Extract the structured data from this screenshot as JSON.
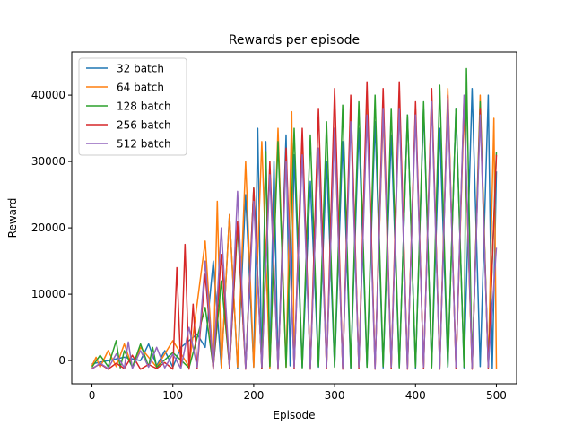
{
  "chart_data": {
    "type": "line",
    "title": "Rewards per episode",
    "xlabel": "Episode",
    "ylabel": "Reward",
    "xlim": [
      -25,
      525
    ],
    "ylim": [
      -3500,
      46500
    ],
    "xticks": [
      0,
      100,
      200,
      300,
      400,
      500
    ],
    "yticks": [
      0,
      10000,
      20000,
      30000,
      40000
    ],
    "grid": false,
    "legend_position": "top-left",
    "series": [
      {
        "name": "32 batch",
        "color": "#1f77b4",
        "x": [
          0,
          20,
          40,
          60,
          70,
          80,
          90,
          100,
          110,
          120,
          130,
          140,
          150,
          160,
          170,
          180,
          190,
          200,
          205,
          210,
          215,
          220,
          225,
          230,
          240,
          245,
          250,
          260,
          270,
          280,
          290,
          300,
          310,
          320,
          330,
          340,
          350,
          360,
          370,
          380,
          390,
          400,
          410,
          420,
          430,
          440,
          450,
          460,
          470,
          480,
          490,
          495,
          500
        ],
        "values": [
          -500,
          0,
          500,
          0,
          2500,
          -800,
          1500,
          -1000,
          2000,
          3000,
          4000,
          2000,
          15000,
          -1000,
          22000,
          -1200,
          25000,
          -1000,
          35000,
          -1200,
          33000,
          -800,
          30000,
          -1000,
          34000,
          -800,
          31000,
          -1000,
          27000,
          -1000,
          30000,
          -900,
          33000,
          -1200,
          35000,
          -1000,
          36000,
          -1100,
          34000,
          -1000,
          37000,
          -1200,
          38000,
          -900,
          35000,
          -1000,
          38000,
          -1100,
          41000,
          -900,
          40000,
          -1200,
          28500
        ]
      },
      {
        "name": "64 batch",
        "color": "#ff7f0e",
        "x": [
          0,
          5,
          10,
          20,
          30,
          40,
          50,
          60,
          80,
          100,
          120,
          140,
          150,
          155,
          160,
          170,
          180,
          190,
          200,
          210,
          220,
          230,
          240,
          247,
          250,
          260,
          270,
          280,
          290,
          300,
          310,
          320,
          330,
          340,
          350,
          360,
          370,
          380,
          390,
          400,
          410,
          420,
          430,
          440,
          450,
          460,
          470,
          480,
          490,
          497,
          500
        ],
        "values": [
          -800,
          500,
          -1000,
          1500,
          -900,
          2500,
          -1000,
          2000,
          -1000,
          3000,
          -900,
          18000,
          -1000,
          24000,
          -1100,
          22000,
          -1000,
          30000,
          -1000,
          33000,
          -1200,
          35000,
          -1000,
          37500,
          -800,
          33000,
          -1000,
          32000,
          -900,
          35000,
          -1100,
          38000,
          -1000,
          40000,
          -900,
          37000,
          -1200,
          39000,
          -1000,
          38000,
          -1100,
          40000,
          -900,
          41000,
          -1000,
          38000,
          -1200,
          40000,
          -1000,
          36500,
          -1200
        ]
      },
      {
        "name": "128 batch",
        "color": "#2ca02c",
        "x": [
          0,
          10,
          20,
          30,
          35,
          40,
          50,
          60,
          70,
          75,
          80,
          100,
          120,
          140,
          150,
          160,
          170,
          180,
          190,
          200,
          210,
          215,
          220,
          230,
          240,
          250,
          260,
          270,
          280,
          290,
          300,
          310,
          320,
          330,
          340,
          350,
          360,
          370,
          380,
          390,
          400,
          410,
          420,
          430,
          440,
          450,
          460,
          463,
          470,
          480,
          490,
          500
        ],
        "values": [
          -1000,
          800,
          -900,
          3000,
          -1100,
          1500,
          -1000,
          2500,
          -900,
          2000,
          -1000,
          1200,
          -1100,
          8000,
          -1000,
          12000,
          -900,
          20000,
          -1000,
          26000,
          -1100,
          31500,
          -900,
          33000,
          -1000,
          35000,
          -1100,
          34000,
          -900,
          36000,
          -1000,
          38500,
          -1100,
          39000,
          -1000,
          40000,
          -900,
          38000,
          -1100,
          37000,
          -1000,
          39000,
          -1100,
          41500,
          -900,
          38000,
          -1000,
          44000,
          -1100,
          39000,
          -1000,
          31500
        ]
      },
      {
        "name": "256 batch",
        "color": "#d62728",
        "x": [
          0,
          10,
          20,
          30,
          40,
          50,
          60,
          70,
          80,
          90,
          100,
          105,
          110,
          115,
          120,
          125,
          130,
          140,
          150,
          160,
          170,
          180,
          190,
          200,
          210,
          220,
          230,
          240,
          250,
          260,
          270,
          280,
          290,
          300,
          310,
          320,
          330,
          340,
          350,
          360,
          370,
          380,
          390,
          400,
          410,
          420,
          430,
          440,
          450,
          460,
          470,
          480,
          490,
          500
        ],
        "values": [
          -1200,
          -500,
          -1300,
          -400,
          -1200,
          800,
          -1300,
          -600,
          -1200,
          -300,
          -1300,
          14000,
          -1200,
          17500,
          -1300,
          8500,
          -1200,
          13000,
          -1300,
          16000,
          -1200,
          21000,
          -1300,
          26000,
          -1200,
          30000,
          -1300,
          32000,
          -1200,
          35000,
          -1300,
          38000,
          -1200,
          41000,
          -1300,
          40000,
          -1200,
          42000,
          -1300,
          41000,
          -1200,
          42000,
          -1300,
          39000,
          -1200,
          41000,
          -1300,
          40000,
          -1200,
          39500,
          -1300,
          38000,
          -1200,
          31000
        ]
      },
      {
        "name": "512 batch",
        "color": "#9467bd",
        "x": [
          0,
          10,
          20,
          30,
          40,
          45,
          50,
          60,
          70,
          80,
          90,
          100,
          110,
          120,
          130,
          140,
          150,
          160,
          170,
          180,
          190,
          200,
          210,
          220,
          230,
          240,
          250,
          260,
          270,
          280,
          290,
          300,
          310,
          320,
          330,
          340,
          350,
          360,
          370,
          380,
          390,
          400,
          410,
          420,
          430,
          440,
          450,
          460,
          470,
          480,
          490,
          500
        ],
        "values": [
          -1300,
          -400,
          -1200,
          1000,
          -1100,
          2800,
          -1200,
          1500,
          -1000,
          2000,
          -1100,
          1000,
          -1200,
          5000,
          -1000,
          15000,
          -1100,
          20000,
          -1000,
          25500,
          -1200,
          24000,
          -1000,
          28000,
          -1100,
          30000,
          -1000,
          31000,
          -1200,
          32000,
          -1000,
          35000,
          -1100,
          36000,
          -1000,
          37000,
          -1200,
          38000,
          -1000,
          38000,
          -1100,
          37000,
          -1000,
          39000,
          -1200,
          39500,
          -1000,
          40000,
          -1100,
          37000,
          -1000,
          17000
        ]
      }
    ]
  }
}
